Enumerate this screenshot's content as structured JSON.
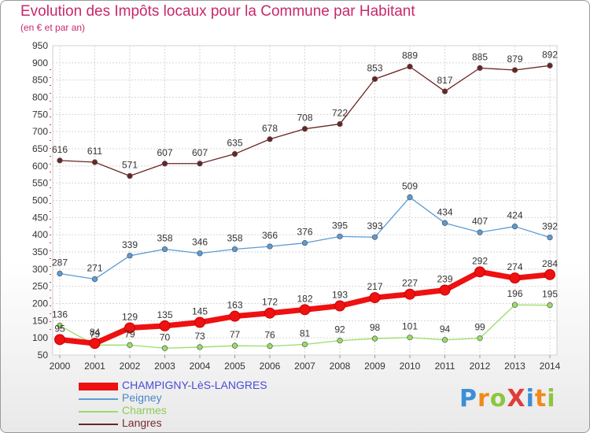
{
  "header": {
    "title": "Evolution des Impôts locaux pour la Commune par Habitant",
    "subtitle": "(en € et par an)"
  },
  "logo": {
    "text": "Proxiti",
    "letters": [
      {
        "ch": "P",
        "color": "#3a8fd6"
      },
      {
        "ch": "r",
        "color": "#f08a1c"
      },
      {
        "ch": "o",
        "color": "#8cc63f"
      },
      {
        "ch": "X",
        "color": "#e23b3b"
      },
      {
        "ch": "i",
        "color": "#3a8fd6"
      },
      {
        "ch": "t",
        "color": "#f08a1c"
      },
      {
        "ch": "i",
        "color": "#8cc63f"
      }
    ]
  },
  "chart_data": {
    "type": "line",
    "title": "Evolution des Impôts locaux pour la Commune par Habitant",
    "subtitle": "(en € et par an)",
    "x": [
      "2000",
      "2001",
      "2002",
      "2003",
      "2004",
      "2005",
      "2006",
      "2007",
      "2008",
      "2009",
      "2010",
      "2011",
      "2012",
      "2013",
      "2014"
    ],
    "ylim": [
      50,
      950
    ],
    "yticks": [
      50,
      100,
      150,
      200,
      250,
      300,
      350,
      400,
      450,
      500,
      550,
      600,
      650,
      700,
      750,
      800,
      850,
      900,
      950
    ],
    "grid": true,
    "legend_position": "bottom-left",
    "series": [
      {
        "name": "CHAMPIGNY-LèS-LANGRES",
        "color": "#ee1111",
        "legend_text_color": "#4a4adb",
        "emphasis": true,
        "values": [
          95,
          84,
          129,
          135,
          145,
          163,
          172,
          182,
          193,
          217,
          227,
          239,
          292,
          274,
          284
        ]
      },
      {
        "name": "Peigney",
        "color": "#5b9bd5",
        "legend_text_color": "#4a86c8",
        "values": [
          287,
          271,
          339,
          358,
          346,
          358,
          366,
          376,
          395,
          393,
          509,
          434,
          407,
          424,
          392
        ]
      },
      {
        "name": "Charmes",
        "color": "#99dd66",
        "legend_text_color": "#8dcb55",
        "values": [
          136,
          79,
          79,
          70,
          73,
          77,
          76,
          81,
          92,
          98,
          101,
          94,
          99,
          196,
          195
        ]
      },
      {
        "name": "Langres",
        "color": "#6b2424",
        "legend_text_color": "#7a2a2a",
        "values": [
          616,
          611,
          571,
          607,
          607,
          635,
          678,
          708,
          722,
          853,
          889,
          817,
          885,
          879,
          892
        ]
      }
    ],
    "data_label_overrides": {
      "0-0": "95",
      "0-1": "84",
      "2-1": "79"
    }
  }
}
